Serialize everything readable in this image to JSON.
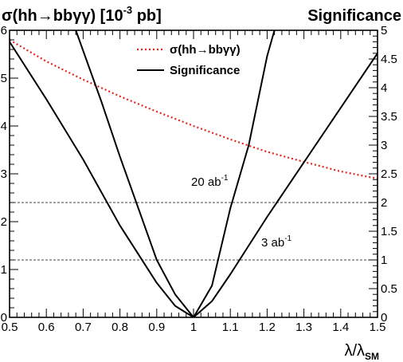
{
  "chart_data": {
    "type": "line",
    "title_left": "σ(hh→bbγγ) [10",
    "title_left_sup": "-3",
    "title_left_tail": " pb]",
    "title_right": "Significance",
    "xlabel": "λ/λ",
    "xlabel_sub": "SM",
    "xlim": [
      0.5,
      1.5
    ],
    "ylim_left": [
      0,
      6
    ],
    "ylim_right": [
      0,
      5
    ],
    "x_ticks": [
      "0.5",
      "0.6",
      "0.7",
      "0.8",
      "0.9",
      "1",
      "1.1",
      "1.2",
      "1.3",
      "1.4",
      "1.5"
    ],
    "y_left_ticks": [
      "0",
      "1",
      "2",
      "3",
      "4",
      "5",
      "6"
    ],
    "y_right_ticks": [
      "0",
      "0.5",
      "1",
      "1.5",
      "2",
      "2.5",
      "3",
      "3.5",
      "4",
      "4.5",
      "5"
    ],
    "legend": [
      {
        "label": "σ(hh→bbγγ)",
        "style": "dotted",
        "color": "#e8231a"
      },
      {
        "label": "Significance",
        "style": "solid",
        "color": "#000000"
      }
    ],
    "reference_lines_right_axis": [
      2,
      1
    ],
    "annotations": {
      "line_20": "20 ab",
      "line_3": "3 ab",
      "sup": "-1"
    },
    "series": [
      {
        "name": "σ(hh→bbγγ)",
        "axis": "left",
        "color": "#e8231a",
        "x": [
          0.5,
          0.6,
          0.7,
          0.8,
          0.9,
          1.0,
          1.1,
          1.2,
          1.3,
          1.4,
          1.5
        ],
        "y": [
          5.8,
          5.35,
          4.97,
          4.62,
          4.3,
          4.0,
          3.72,
          3.46,
          3.25,
          3.05,
          2.9
        ]
      },
      {
        "name": "Significance 20 ab-1",
        "axis": "right",
        "color": "#000000",
        "x": [
          0.68,
          0.75,
          0.8,
          0.85,
          0.9,
          0.95,
          1.0,
          1.05,
          1.1,
          1.15,
          1.2,
          1.22
        ],
        "y": [
          5.0,
          3.75,
          2.8,
          1.9,
          1.0,
          0.4,
          0.0,
          0.55,
          1.9,
          3.0,
          4.55,
          5.0
        ]
      },
      {
        "name": "Significance 3 ab-1",
        "axis": "right",
        "color": "#000000",
        "x": [
          0.5,
          0.6,
          0.7,
          0.8,
          0.85,
          0.9,
          0.95,
          1.0,
          1.05,
          1.1,
          1.15,
          1.2,
          1.3,
          1.4,
          1.5
        ],
        "y": [
          4.8,
          3.8,
          2.75,
          1.6,
          1.1,
          0.6,
          0.2,
          0.0,
          0.28,
          0.75,
          1.25,
          1.75,
          2.7,
          3.65,
          4.6
        ]
      }
    ]
  }
}
